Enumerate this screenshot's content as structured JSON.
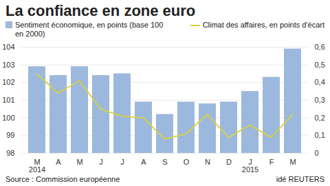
{
  "chart_data": {
    "type": "bar",
    "title": "La confiance en zone euro",
    "source": "Source : Commission européenne",
    "credit": "idé REUTERS",
    "categories": [
      "M\n2014",
      "A",
      "M",
      "J",
      "J",
      "A",
      "S",
      "O",
      "N",
      "D",
      "J\n2015",
      "F",
      "M"
    ],
    "series": [
      {
        "name": "Sentiment économique, en points (base 100 en 2000)",
        "type": "bar",
        "color": "#9db8dd",
        "values": [
          102.9,
          102.4,
          102.9,
          102.4,
          102.5,
          100.9,
          100.2,
          100.9,
          100.8,
          100.9,
          101.5,
          102.3,
          103.9
        ]
      },
      {
        "name": "Climat des affaires, en points d'écart",
        "type": "line",
        "axis": "y2",
        "color": "#d8d23a",
        "line_style": "solid",
        "values": [
          0.45,
          0.34,
          0.41,
          0.25,
          0.21,
          0.2,
          0.08,
          0.11,
          0.22,
          0.09,
          0.16,
          0.09,
          0.22
        ]
      }
    ],
    "ylim": [
      98,
      104
    ],
    "yticks": [
      98,
      99,
      100,
      101,
      102,
      103,
      104
    ],
    "y2lim": [
      0,
      0.6
    ],
    "y2ticks": [
      0,
      {
        "value": 0.1,
        "label": "0,1"
      },
      {
        "value": 0.2,
        "label": "0,2"
      },
      {
        "value": 0.3,
        "label": "0,3"
      },
      {
        "value": 0.4,
        "label": "0,4"
      },
      {
        "value": 0.5,
        "label": "0,5"
      },
      {
        "value": 0.6,
        "label": "0,6"
      }
    ],
    "grid": true,
    "legend": "top"
  }
}
